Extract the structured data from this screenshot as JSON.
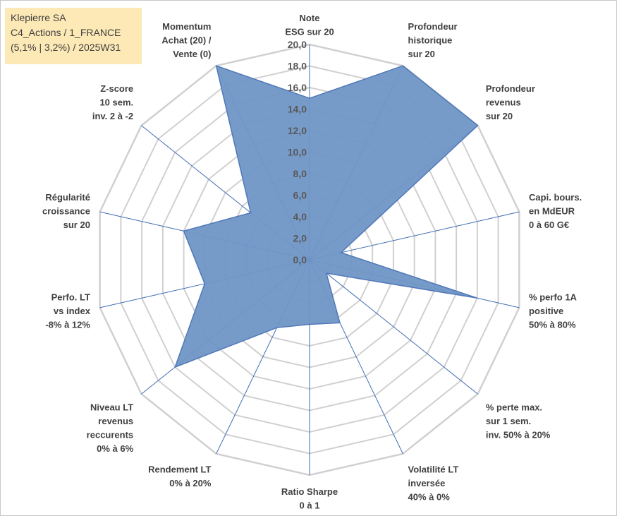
{
  "info": {
    "line1": "Klepierre SA",
    "line2": "C4_Actions / 1_FRANCE",
    "line3": "(5,1% | 3,2%) / 2025W31"
  },
  "colors": {
    "fill": "#7096c6",
    "stroke": "#4f78b8",
    "spoke": "#3e6db5",
    "grid": "#d0d0d0",
    "infobox": "#fde9b5"
  },
  "chart_data": {
    "type": "radar",
    "rmin": 0,
    "rmax": 20,
    "tick_step": 2,
    "tick_labels": [
      "0,0",
      "2,0",
      "4,0",
      "6,0",
      "8,0",
      "10,0",
      "12,0",
      "14,0",
      "16,0",
      "18,0",
      "20,0"
    ],
    "categories": [
      [
        "Note",
        "ESG sur 20"
      ],
      [
        "Profondeur",
        "historique",
        "sur 20"
      ],
      [
        "Profondeur",
        "revenus",
        "sur 20"
      ],
      [
        "Capi. bours.",
        "en MdEUR",
        "0 à 60 G€"
      ],
      [
        "% perfo 1A",
        "positive",
        "50% à 80%"
      ],
      [
        "% perte max.",
        "sur 1 sem.",
        "inv. 50% à 20%"
      ],
      [
        "Volatilité LT",
        "inversée",
        "40% à 0%"
      ],
      [
        "Ratio Sharpe",
        "0 à 1"
      ],
      [
        "Rendement LT",
        "0% à 20%"
      ],
      [
        "Niveau LT",
        "revenus",
        "reccurents",
        "0% à 6%"
      ],
      [
        "Perfo. LT",
        "vs index",
        "-8% à 12%"
      ],
      [
        "Régularité",
        "croissance",
        "sur 20"
      ],
      [
        "Z-score",
        "10 sem.",
        "inv. 2 à -2"
      ],
      [
        "Momentum",
        "Achat (20) /",
        "Vente (0)"
      ]
    ],
    "values": [
      15,
      20,
      20,
      3,
      16,
      2,
      6.5,
      6,
      7,
      16,
      10,
      12,
      7,
      20
    ],
    "grid": true,
    "legend": "none"
  }
}
